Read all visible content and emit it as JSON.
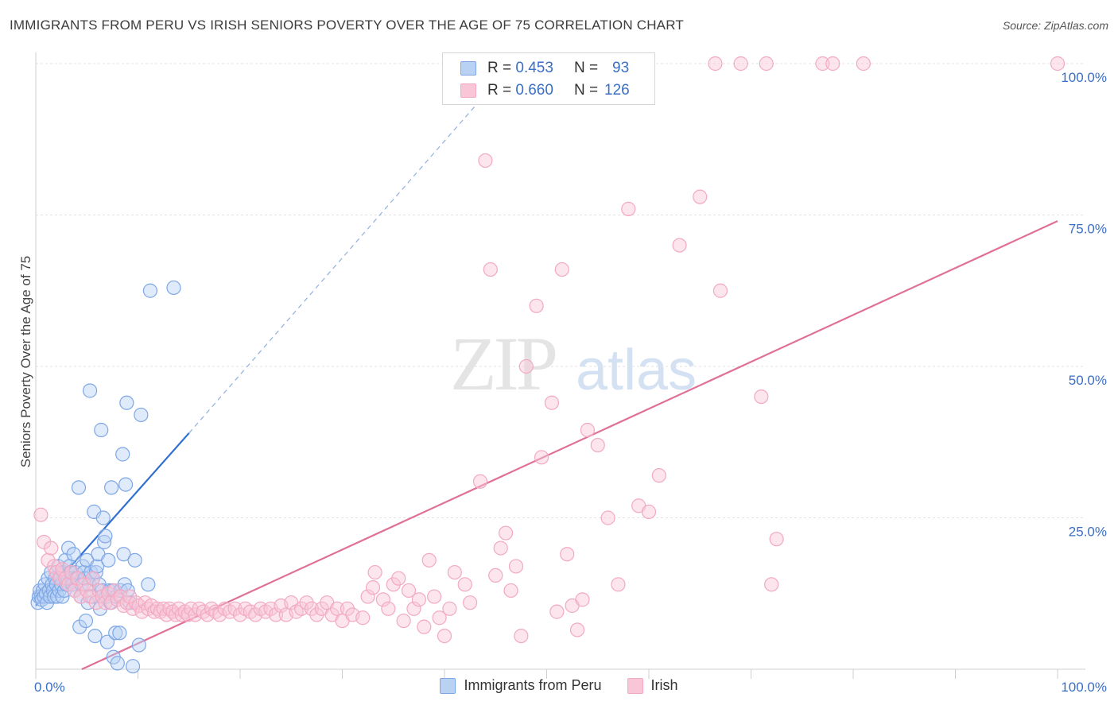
{
  "header": {
    "title": "IMMIGRANTS FROM PERU VS IRISH SENIORS POVERTY OVER THE AGE OF 75 CORRELATION CHART",
    "source": "Source: ZipAtlas.com"
  },
  "legend": {
    "rows": [
      {
        "r_label": "R =",
        "r_value": "0.453",
        "n_label": "N =",
        "n_value": "93"
      },
      {
        "r_label": "R =",
        "r_value": "0.660",
        "n_label": "N =",
        "n_value": "126"
      }
    ]
  },
  "watermark": {
    "zip": "ZIP",
    "atlas": "atlas"
  },
  "chart_data": {
    "type": "scatter",
    "ylabel": "Seniors Poverty Over the Age of 75",
    "xlim": [
      0,
      100
    ],
    "ylim": [
      0,
      100
    ],
    "x_tick_labels": [
      {
        "value": 0,
        "label": "0.0%"
      },
      {
        "value": 100,
        "label": "100.0%"
      }
    ],
    "y_tick_labels": [
      {
        "value": 25,
        "label": "25.0%"
      },
      {
        "value": 50,
        "label": "50.0%"
      },
      {
        "value": 75,
        "label": "75.0%"
      },
      {
        "value": 100,
        "label": "100.0%"
      }
    ],
    "grid": true,
    "legend_position": "bottom",
    "series": [
      {
        "name": "Immigrants from Peru",
        "color": "#7ea7e6",
        "line_color": "#2f6fd0",
        "trend": {
          "x0": 0,
          "y0": 10.5,
          "x1": 15,
          "y1": 39,
          "dash_to_x": 43,
          "dash_to_y": 93
        },
        "points": [
          [
            0.2,
            11
          ],
          [
            0.3,
            12
          ],
          [
            0.4,
            13
          ],
          [
            0.5,
            12
          ],
          [
            0.6,
            11.5
          ],
          [
            0.7,
            13
          ],
          [
            0.8,
            12
          ],
          [
            0.9,
            14
          ],
          [
            1.0,
            12.5
          ],
          [
            1.1,
            11
          ],
          [
            1.2,
            15
          ],
          [
            1.3,
            13
          ],
          [
            1.4,
            12
          ],
          [
            1.5,
            16
          ],
          [
            1.6,
            14
          ],
          [
            1.7,
            13
          ],
          [
            1.8,
            12
          ],
          [
            1.9,
            15
          ],
          [
            2.0,
            14
          ],
          [
            2.1,
            12
          ],
          [
            2.2,
            17
          ],
          [
            2.3,
            13
          ],
          [
            2.4,
            15
          ],
          [
            2.5,
            14
          ],
          [
            2.6,
            12
          ],
          [
            2.7,
            16
          ],
          [
            2.8,
            13
          ],
          [
            2.9,
            18
          ],
          [
            3.0,
            14
          ],
          [
            3.1,
            15
          ],
          [
            3.2,
            20
          ],
          [
            3.3,
            17
          ],
          [
            3.4,
            16
          ],
          [
            3.5,
            15
          ],
          [
            3.6,
            14
          ],
          [
            3.7,
            19
          ],
          [
            3.8,
            13
          ],
          [
            3.9,
            16
          ],
          [
            4.0,
            15
          ],
          [
            4.2,
            30
          ],
          [
            4.3,
            7
          ],
          [
            4.4,
            12
          ],
          [
            4.5,
            14
          ],
          [
            4.6,
            17
          ],
          [
            4.7,
            16
          ],
          [
            4.8,
            15
          ],
          [
            4.9,
            8
          ],
          [
            5.0,
            18
          ],
          [
            5.1,
            11
          ],
          [
            5.2,
            14
          ],
          [
            5.3,
            46
          ],
          [
            5.4,
            16
          ],
          [
            5.5,
            12
          ],
          [
            5.6,
            15
          ],
          [
            5.7,
            26
          ],
          [
            5.8,
            5.5
          ],
          [
            5.9,
            16
          ],
          [
            6.0,
            17
          ],
          [
            6.1,
            19
          ],
          [
            6.2,
            14
          ],
          [
            6.3,
            10
          ],
          [
            6.4,
            39.5
          ],
          [
            6.5,
            13
          ],
          [
            6.6,
            25
          ],
          [
            6.7,
            21
          ],
          [
            6.8,
            22
          ],
          [
            6.9,
            12
          ],
          [
            7.0,
            4.5
          ],
          [
            7.1,
            18
          ],
          [
            7.2,
            13
          ],
          [
            7.3,
            11
          ],
          [
            7.4,
            30
          ],
          [
            7.5,
            13
          ],
          [
            7.6,
            2
          ],
          [
            7.8,
            6
          ],
          [
            7.9,
            12
          ],
          [
            8.0,
            1
          ],
          [
            8.2,
            6
          ],
          [
            8.3,
            13
          ],
          [
            8.5,
            35.5
          ],
          [
            8.6,
            19
          ],
          [
            8.7,
            14
          ],
          [
            8.8,
            30.5
          ],
          [
            8.9,
            44
          ],
          [
            9.0,
            13
          ],
          [
            9.2,
            11
          ],
          [
            9.5,
            0.5
          ],
          [
            9.7,
            18
          ],
          [
            10.1,
            4
          ],
          [
            10.3,
            42
          ],
          [
            11.0,
            14
          ],
          [
            11.2,
            62.5
          ],
          [
            13.5,
            63
          ]
        ]
      },
      {
        "name": "Irish",
        "color": "#f2a9c1",
        "line_color": "#e07098",
        "trend": {
          "x0": 4.5,
          "y0": 0,
          "x1": 100,
          "y1": 74
        },
        "points": [
          [
            0.5,
            25.5
          ],
          [
            0.8,
            21
          ],
          [
            1.2,
            18
          ],
          [
            1.5,
            20
          ],
          [
            1.8,
            17
          ],
          [
            2.0,
            16
          ],
          [
            2.3,
            15
          ],
          [
            2.6,
            16.5
          ],
          [
            2.9,
            15
          ],
          [
            3.2,
            14
          ],
          [
            3.5,
            16
          ],
          [
            3.8,
            13
          ],
          [
            4.1,
            15
          ],
          [
            4.4,
            12
          ],
          [
            4.7,
            14
          ],
          [
            5.0,
            13
          ],
          [
            5.3,
            12
          ],
          [
            5.6,
            15
          ],
          [
            5.9,
            11
          ],
          [
            6.2,
            13
          ],
          [
            6.5,
            12
          ],
          [
            6.8,
            11
          ],
          [
            7.1,
            12.5
          ],
          [
            7.4,
            11
          ],
          [
            7.7,
            13
          ],
          [
            8.0,
            11.5
          ],
          [
            8.3,
            12
          ],
          [
            8.6,
            10.5
          ],
          [
            8.9,
            11
          ],
          [
            9.2,
            12
          ],
          [
            9.5,
            10
          ],
          [
            9.8,
            11
          ],
          [
            10.1,
            10.5
          ],
          [
            10.4,
            9.5
          ],
          [
            10.7,
            11
          ],
          [
            11.0,
            10
          ],
          [
            11.3,
            10.5
          ],
          [
            11.6,
            9.5
          ],
          [
            11.9,
            10
          ],
          [
            12.2,
            9.5
          ],
          [
            12.5,
            10
          ],
          [
            12.8,
            9
          ],
          [
            13.1,
            10
          ],
          [
            13.4,
            9.5
          ],
          [
            13.7,
            9
          ],
          [
            14.0,
            10
          ],
          [
            14.3,
            9
          ],
          [
            14.6,
            9.5
          ],
          [
            14.9,
            9
          ],
          [
            15.2,
            10
          ],
          [
            15.6,
            9
          ],
          [
            16.0,
            10
          ],
          [
            16.4,
            9.5
          ],
          [
            16.8,
            9
          ],
          [
            17.2,
            10
          ],
          [
            17.6,
            9.5
          ],
          [
            18.0,
            9
          ],
          [
            18.5,
            10
          ],
          [
            19.0,
            9.5
          ],
          [
            19.5,
            10
          ],
          [
            20.0,
            9
          ],
          [
            20.5,
            10
          ],
          [
            21.0,
            9.5
          ],
          [
            21.5,
            9
          ],
          [
            22.0,
            10
          ],
          [
            22.5,
            9.5
          ],
          [
            23.0,
            10
          ],
          [
            23.5,
            9
          ],
          [
            24.0,
            10.5
          ],
          [
            24.5,
            9
          ],
          [
            25.0,
            11
          ],
          [
            25.5,
            9.5
          ],
          [
            26.0,
            10
          ],
          [
            26.5,
            11
          ],
          [
            27.0,
            10
          ],
          [
            27.5,
            9
          ],
          [
            28.0,
            10
          ],
          [
            28.5,
            11
          ],
          [
            29.0,
            9
          ],
          [
            29.5,
            10
          ],
          [
            30.0,
            8
          ],
          [
            30.5,
            10
          ],
          [
            31.0,
            9
          ],
          [
            32.0,
            8.5
          ],
          [
            32.5,
            12
          ],
          [
            33.0,
            13.5
          ],
          [
            33.2,
            16
          ],
          [
            34.0,
            11.5
          ],
          [
            34.5,
            10
          ],
          [
            35.0,
            14
          ],
          [
            35.5,
            15
          ],
          [
            36.0,
            8
          ],
          [
            36.5,
            13
          ],
          [
            37.0,
            10
          ],
          [
            37.5,
            11.5
          ],
          [
            38.0,
            7
          ],
          [
            38.5,
            18
          ],
          [
            39.0,
            12
          ],
          [
            39.5,
            8.5
          ],
          [
            40.0,
            5.5
          ],
          [
            40.5,
            10
          ],
          [
            41.0,
            16
          ],
          [
            42.0,
            14
          ],
          [
            42.5,
            11
          ],
          [
            43.5,
            31
          ],
          [
            44.0,
            84
          ],
          [
            44.5,
            66
          ],
          [
            45.0,
            15.5
          ],
          [
            45.5,
            20
          ],
          [
            46.0,
            22.5
          ],
          [
            46.5,
            13
          ],
          [
            47.0,
            17
          ],
          [
            47.5,
            5.5
          ],
          [
            48.0,
            50
          ],
          [
            49.0,
            60
          ],
          [
            49.5,
            35
          ],
          [
            50.5,
            44
          ],
          [
            51.0,
            9.5
          ],
          [
            51.5,
            66
          ],
          [
            52.0,
            19
          ],
          [
            52.5,
            10.5
          ],
          [
            53.0,
            6.5
          ],
          [
            53.5,
            11.5
          ],
          [
            54.0,
            39.5
          ],
          [
            55.0,
            37
          ],
          [
            56.0,
            25
          ],
          [
            57.0,
            14
          ],
          [
            58.0,
            76
          ],
          [
            59.0,
            27
          ],
          [
            60.0,
            26
          ],
          [
            61.0,
            32
          ],
          [
            63.0,
            70
          ],
          [
            65.0,
            78
          ],
          [
            67.0,
            62.5
          ],
          [
            71.0,
            45
          ],
          [
            72.0,
            14
          ],
          [
            72.5,
            21.5
          ],
          [
            66.5,
            100
          ],
          [
            69.0,
            100
          ],
          [
            71.5,
            100
          ],
          [
            77.0,
            100
          ],
          [
            78.0,
            100
          ],
          [
            81.0,
            100
          ],
          [
            100.0,
            100
          ]
        ]
      }
    ]
  }
}
